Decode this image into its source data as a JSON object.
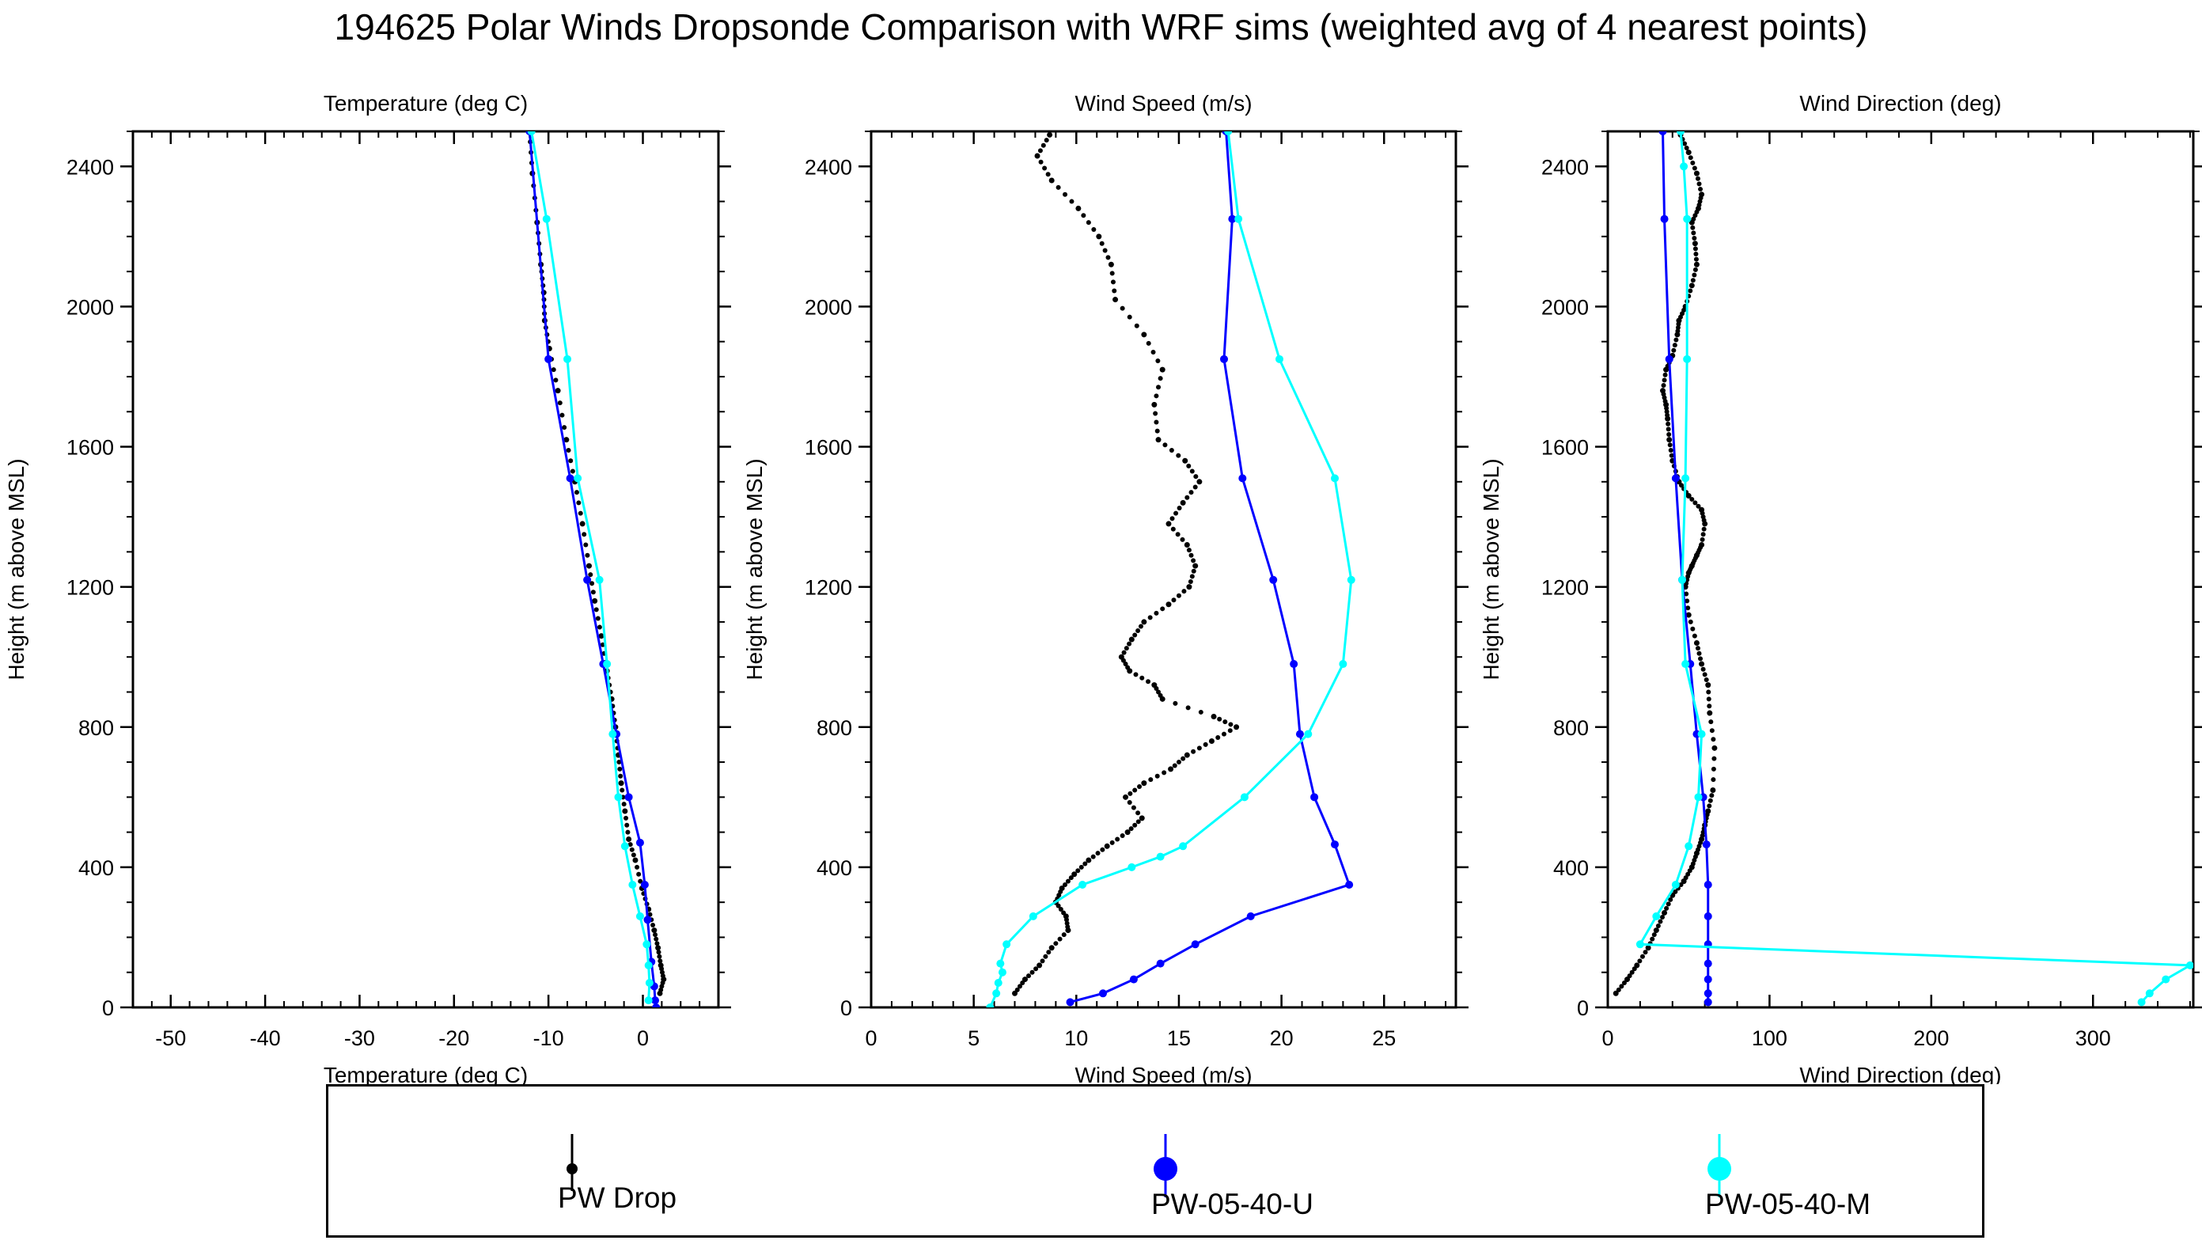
{
  "title": "194625 Polar Winds Dropsonde Comparison with WRF sims (weighted avg of 4 nearest points)",
  "legend": [
    {
      "name": "PW Drop",
      "color": "#000000"
    },
    {
      "name": "PW-05-40-U",
      "color": "#0000ff"
    },
    {
      "name": "PW-05-40-M",
      "color": "#00ffff"
    }
  ],
  "chart_data": [
    {
      "type": "line",
      "title": "Temperature (deg C)",
      "xlabel": "Temperature (deg C)",
      "ylabel": "Height (m above MSL)",
      "xlim": [
        -54,
        8
      ],
      "ylim": [
        0,
        2500
      ],
      "xticks": [
        -50,
        -40,
        -30,
        -20,
        -10,
        0
      ],
      "yticks": [
        0,
        400,
        800,
        1200,
        1600,
        2000,
        2400
      ],
      "grid": false,
      "series": [
        {
          "name": "PW Drop",
          "color": "#000000",
          "style": "dots",
          "x": [
            1.8,
            2.2,
            1.9,
            1.6,
            1.2,
            0.6,
            -0.1,
            -0.8,
            -1.5,
            -1.9,
            -2.3,
            -2.6,
            -2.9,
            -3.3,
            -3.8,
            -4.4,
            -5.1,
            -5.7,
            -6.4,
            -7.2,
            -8.1,
            -9.0,
            -9.9,
            -10.4,
            -10.5,
            -10.8,
            -11.2,
            -11.7,
            -12.0
          ],
          "y": [
            40,
            80,
            120,
            170,
            220,
            280,
            340,
            420,
            480,
            560,
            640,
            720,
            800,
            880,
            960,
            1060,
            1160,
            1260,
            1380,
            1500,
            1620,
            1760,
            1880,
            1960,
            2040,
            2120,
            2240,
            2380,
            2500
          ]
        },
        {
          "name": "PW-05-40-U",
          "color": "#0000ff",
          "style": "line-markers",
          "x": [
            1.4,
            1.3,
            1.2,
            0.9,
            0.5,
            0.2,
            -0.3,
            -1.5,
            -2.8,
            -4.2,
            -5.9,
            -7.7,
            -10.0,
            -12.0
          ],
          "y": [
            0,
            20,
            60,
            130,
            250,
            350,
            470,
            600,
            780,
            980,
            1220,
            1510,
            1850,
            2500
          ]
        },
        {
          "name": "PW-05-40-M",
          "color": "#00ffff",
          "style": "line-markers",
          "x": [
            0.6,
            0.7,
            0.6,
            0.4,
            -0.3,
            -1.1,
            -1.9,
            -2.6,
            -3.2,
            -3.8,
            -4.6,
            -6.9,
            -8.0,
            -10.2,
            -11.8
          ],
          "y": [
            20,
            70,
            120,
            180,
            260,
            350,
            460,
            600,
            780,
            980,
            1220,
            1510,
            1850,
            2250,
            2500
          ]
        }
      ]
    },
    {
      "type": "line",
      "title": "Wind Speed (m/s)",
      "xlabel": "Wind Speed (m/s)",
      "ylabel": "Height (m above MSL)",
      "xlim": [
        0,
        28.5
      ],
      "ylim": [
        0,
        2500
      ],
      "xticks": [
        0,
        5,
        10,
        15,
        20,
        25
      ],
      "yticks": [
        0,
        400,
        800,
        1200,
        1600,
        2000,
        2400
      ],
      "grid": false,
      "series": [
        {
          "name": "PW Drop",
          "color": "#000000",
          "style": "dots",
          "x": [
            7.0,
            7.5,
            8.2,
            8.8,
            9.6,
            9.5,
            9.0,
            9.3,
            9.9,
            10.6,
            11.5,
            12.5,
            13.2,
            12.4,
            13.3,
            14.6,
            15.4,
            16.6,
            17.8,
            16.7,
            14.2,
            13.8,
            12.6,
            12.2,
            12.7,
            13.3,
            14.5,
            15.5,
            15.8,
            15.4,
            14.5,
            15.2,
            16.0,
            15.3,
            14.0,
            13.8,
            14.2,
            13.3,
            11.9,
            11.7,
            11.1,
            10.1,
            8.8,
            8.1,
            8.7
          ],
          "y": [
            40,
            80,
            120,
            170,
            220,
            260,
            300,
            340,
            380,
            420,
            460,
            500,
            540,
            600,
            640,
            680,
            720,
            760,
            800,
            830,
            880,
            920,
            960,
            1000,
            1050,
            1100,
            1150,
            1200,
            1260,
            1320,
            1380,
            1440,
            1500,
            1560,
            1620,
            1720,
            1820,
            1920,
            2020,
            2120,
            2200,
            2280,
            2360,
            2430,
            2490
          ]
        },
        {
          "name": "PW-05-40-U",
          "color": "#0000ff",
          "style": "line-markers",
          "x": [
            9.7,
            11.3,
            12.8,
            14.1,
            15.8,
            18.5,
            23.3,
            22.6,
            21.6,
            20.9,
            20.6,
            19.6,
            18.1,
            17.2,
            17.6,
            17.3
          ],
          "y": [
            15,
            40,
            80,
            125,
            180,
            260,
            350,
            465,
            600,
            780,
            980,
            1220,
            1510,
            1850,
            2250,
            2500
          ]
        },
        {
          "name": "PW-05-40-M",
          "color": "#00ffff",
          "style": "line-markers",
          "x": [
            5.8,
            6.1,
            6.2,
            6.4,
            6.3,
            6.6,
            7.9,
            10.3,
            12.7,
            14.1,
            15.2,
            18.2,
            21.3,
            23.0,
            23.4,
            22.6,
            19.9,
            17.9,
            17.4
          ],
          "y": [
            0,
            40,
            70,
            100,
            125,
            180,
            260,
            350,
            400,
            430,
            460,
            600,
            780,
            980,
            1220,
            1510,
            1850,
            2250,
            2500
          ]
        }
      ]
    },
    {
      "type": "line",
      "title": "Wind Direction (deg)",
      "xlabel": "Wind Direction (deg)",
      "ylabel": "Height (m above MSL)",
      "xlim": [
        0,
        362
      ],
      "ylim": [
        0,
        2500
      ],
      "xticks": [
        0,
        100,
        200,
        300
      ],
      "yticks": [
        0,
        400,
        800,
        1200,
        1600,
        2000,
        2400
      ],
      "grid": false,
      "series": [
        {
          "name": "PW Drop",
          "color": "#000000",
          "style": "dots",
          "x": [
            5,
            12,
            18,
            25,
            30,
            35,
            40,
            47,
            52,
            55,
            58,
            60,
            62,
            65,
            66,
            63,
            62,
            58,
            55,
            50,
            48,
            50,
            52,
            55,
            58,
            60,
            58,
            50,
            44,
            40,
            38,
            37,
            36,
            34,
            36,
            40,
            43,
            44,
            48,
            52,
            55,
            54,
            52,
            56,
            58,
            55,
            50,
            45
          ],
          "y": [
            40,
            80,
            120,
            170,
            220,
            270,
            320,
            360,
            400,
            440,
            480,
            520,
            560,
            620,
            740,
            840,
            920,
            980,
            1040,
            1120,
            1200,
            1240,
            1260,
            1290,
            1320,
            1380,
            1420,
            1460,
            1500,
            1560,
            1620,
            1680,
            1720,
            1760,
            1820,
            1860,
            1920,
            1960,
            2000,
            2060,
            2120,
            2180,
            2240,
            2280,
            2320,
            2380,
            2440,
            2490
          ]
        },
        {
          "name": "PW-05-40-U",
          "color": "#0000ff",
          "style": "line-markers",
          "x": [
            62,
            62,
            62,
            62,
            62,
            62,
            62,
            61,
            59,
            55,
            51,
            46,
            42,
            38,
            35,
            34
          ],
          "y": [
            15,
            40,
            80,
            125,
            180,
            260,
            350,
            465,
            600,
            780,
            980,
            1220,
            1510,
            1850,
            2250,
            2500
          ]
        },
        {
          "name": "PW-05-40-M",
          "color": "#00ffff",
          "style": "line-markers",
          "x": [
            330,
            335,
            345,
            360,
            20,
            30,
            42,
            50,
            56,
            58,
            48,
            46,
            48,
            49,
            49,
            47,
            45
          ],
          "y": [
            15,
            40,
            80,
            120,
            180,
            260,
            350,
            460,
            600,
            780,
            980,
            1220,
            1510,
            1850,
            2250,
            2400,
            2500
          ]
        }
      ]
    }
  ]
}
